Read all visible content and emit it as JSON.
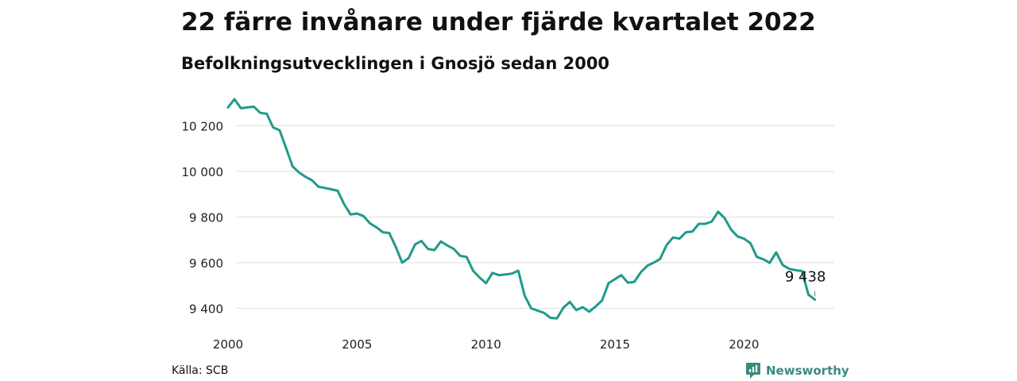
{
  "title": "22 färre invånare under fjärde kvartalet 2022",
  "subtitle": "Befolkningsutvecklingen i Gnosjö sedan 2000",
  "source": "Källa: SCB",
  "brand": {
    "name": "Newsworthy",
    "icon": "newsworthy-logo-icon",
    "color": "#3a8a7f"
  },
  "chart_data": {
    "type": "line",
    "title": "22 färre invånare under fjärde kvartalet 2022",
    "subtitle": "Befolkningsutvecklingen i Gnosjö sedan 2000",
    "xlabel": "",
    "ylabel": "",
    "x_start": 2000.0,
    "x_step": 0.25,
    "xlim": [
      2000,
      2023.5
    ],
    "ylim": [
      9325,
      10340
    ],
    "x_ticks": [
      {
        "value": 2000,
        "label": "2000"
      },
      {
        "value": 2005,
        "label": "2005"
      },
      {
        "value": 2010,
        "label": "2010"
      },
      {
        "value": 2015,
        "label": "2015"
      },
      {
        "value": 2020,
        "label": "2020"
      }
    ],
    "y_ticks": [
      {
        "value": 9400,
        "label": "9 400"
      },
      {
        "value": 9600,
        "label": "9 600"
      },
      {
        "value": 9800,
        "label": "9 800"
      },
      {
        "value": 10000,
        "label": "10 000"
      },
      {
        "value": 10200,
        "label": "10 200"
      }
    ],
    "grid": true,
    "line_color": "#1f9a8a",
    "series": [
      {
        "values": [
          10280,
          10316,
          10276,
          10280,
          10283,
          10256,
          10252,
          10192,
          10180,
          10101,
          10022,
          9995,
          9976,
          9961,
          9933,
          9927,
          9921,
          9915,
          9856,
          9811,
          9815,
          9804,
          9772,
          9755,
          9733,
          9730,
          9670,
          9600,
          9620,
          9680,
          9695,
          9660,
          9655,
          9693,
          9675,
          9660,
          9630,
          9625,
          9565,
          9535,
          9510,
          9555,
          9545,
          9548,
          9552,
          9565,
          9455,
          9400,
          9390,
          9380,
          9358,
          9356,
          9403,
          9428,
          9392,
          9405,
          9385,
          9408,
          9435,
          9510,
          9528,
          9545,
          9512,
          9516,
          9558,
          9586,
          9600,
          9616,
          9677,
          9710,
          9705,
          9733,
          9736,
          9770,
          9770,
          9780,
          9823,
          9795,
          9745,
          9715,
          9705,
          9685,
          9625,
          9615,
          9599,
          9645,
          9590,
          9573,
          9567,
          9563,
          9460,
          9438
        ]
      }
    ],
    "annotation": {
      "label": "9 438",
      "value": 9438
    }
  }
}
